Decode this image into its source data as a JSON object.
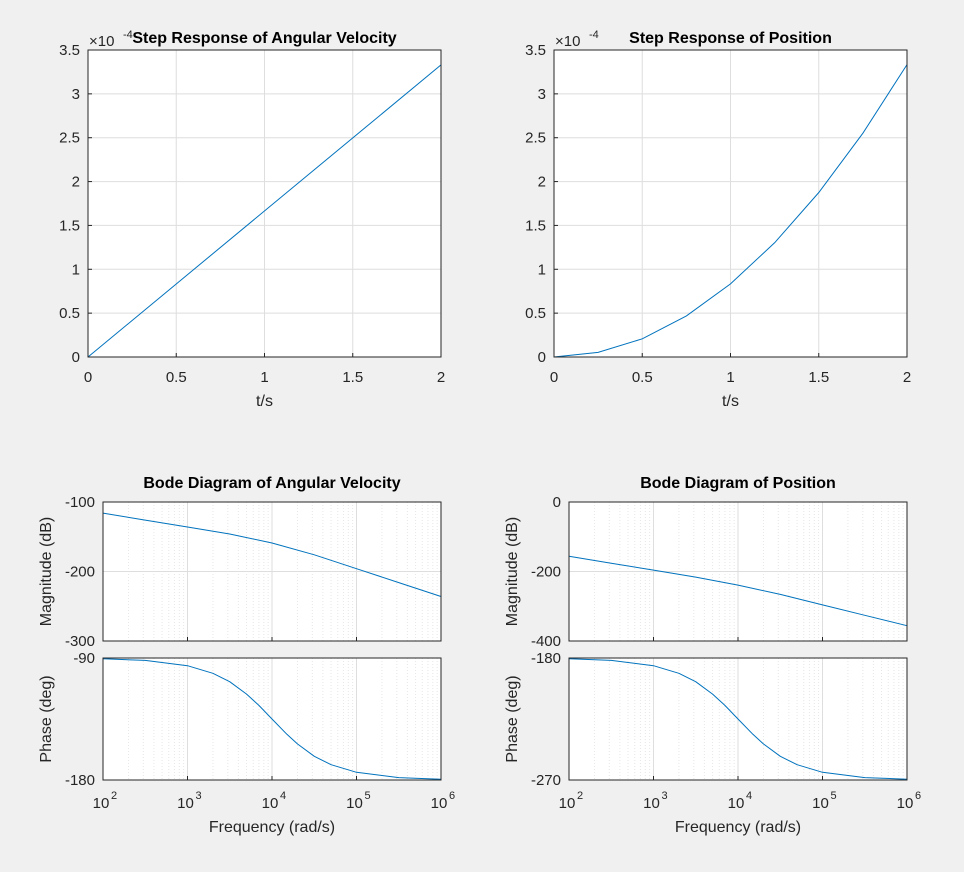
{
  "chart_data": [
    {
      "id": "step_velocity",
      "type": "line",
      "title": "Step Response of Angular Velocity",
      "xlabel": "t/s",
      "ylabel": "",
      "xlim": [
        0,
        2
      ],
      "ylim": [
        0,
        3.5
      ],
      "xticks": [
        "0",
        "0.5",
        "1",
        "1.5",
        "2"
      ],
      "yticks": [
        "0",
        "0.5",
        "1",
        "1.5",
        "2",
        "2.5",
        "3",
        "3.5"
      ],
      "y_exponent_base": "×10",
      "y_exponent": "-4",
      "grid": true,
      "color": "#0072BD",
      "x": [
        0,
        2
      ],
      "y": [
        0,
        3.33
      ]
    },
    {
      "id": "step_position",
      "type": "line",
      "title": "Step Response of Position",
      "xlabel": "t/s",
      "ylabel": "",
      "xlim": [
        0,
        2
      ],
      "ylim": [
        0,
        3.5
      ],
      "xticks": [
        "0",
        "0.5",
        "1",
        "1.5",
        "2"
      ],
      "yticks": [
        "0",
        "0.5",
        "1",
        "1.5",
        "2",
        "2.5",
        "3",
        "3.5"
      ],
      "y_exponent_base": "×10",
      "y_exponent": "-4",
      "grid": true,
      "color": "#0072BD",
      "x": [
        0,
        0.25,
        0.5,
        0.75,
        1.0,
        1.25,
        1.5,
        1.75,
        2.0
      ],
      "y": [
        0,
        0.052,
        0.208,
        0.469,
        0.833,
        1.302,
        1.875,
        2.552,
        3.333
      ]
    },
    {
      "id": "bode_velocity",
      "type": "line",
      "title": "Bode Diagram of Angular Velocity",
      "xlabel": "Frequency  (rad/s)",
      "xscale": "log",
      "xlim": [
        100,
        1000000
      ],
      "xticks_base": "10",
      "xticks_exp": [
        "2",
        "3",
        "4",
        "5",
        "6"
      ],
      "grid": true,
      "color": "#0072BD",
      "magnitude": {
        "ylabel": "Magnitude (dB)",
        "ylim": [
          -300,
          -100
        ],
        "yticks": [
          "-100",
          "-200",
          "-300"
        ],
        "x": [
          100,
          316,
          1000,
          3162,
          10000,
          31623,
          100000,
          316228,
          1000000
        ],
        "y": [
          -116,
          -126,
          -136,
          -146,
          -159,
          -176,
          -196,
          -216,
          -236
        ]
      },
      "phase": {
        "ylabel": "Phase (deg)",
        "ylim": [
          -180,
          -90
        ],
        "yticks": [
          "-90",
          "-180"
        ],
        "x": [
          100,
          316,
          1000,
          2000,
          3162,
          5000,
          7000,
          10000,
          15000,
          20000,
          31623,
          50000,
          100000,
          316228,
          1000000
        ],
        "y": [
          -90.6,
          -91.8,
          -95.7,
          -101.3,
          -107.5,
          -116.6,
          -125,
          -135,
          -146.3,
          -153.4,
          -162.5,
          -168.7,
          -174.3,
          -178.2,
          -179.4
        ]
      }
    },
    {
      "id": "bode_position",
      "type": "line",
      "title": "Bode Diagram of Position",
      "xlabel": "Frequency  (rad/s)",
      "xscale": "log",
      "xlim": [
        100,
        1000000
      ],
      "xticks_base": "10",
      "xticks_exp": [
        "2",
        "3",
        "4",
        "5",
        "6"
      ],
      "grid": true,
      "color": "#0072BD",
      "magnitude": {
        "ylabel": "Magnitude (dB)",
        "ylim": [
          -400,
          0
        ],
        "yticks": [
          "0",
          "-200",
          "-400"
        ],
        "x": [
          100,
          316,
          1000,
          3162,
          10000,
          31623,
          100000,
          316228,
          1000000
        ],
        "y": [
          -156,
          -176,
          -196,
          -216,
          -239,
          -266,
          -296,
          -326,
          -356
        ]
      },
      "phase": {
        "ylabel": "Phase (deg)",
        "ylim": [
          -270,
          -180
        ],
        "yticks": [
          "-180",
          "-270"
        ],
        "x": [
          100,
          316,
          1000,
          2000,
          3162,
          5000,
          7000,
          10000,
          15000,
          20000,
          31623,
          50000,
          100000,
          316228,
          1000000
        ],
        "y": [
          -180.6,
          -181.8,
          -185.7,
          -191.3,
          -197.5,
          -206.6,
          -215,
          -225,
          -236.3,
          -243.4,
          -252.5,
          -258.7,
          -264.3,
          -268.2,
          -269.4
        ]
      }
    }
  ]
}
